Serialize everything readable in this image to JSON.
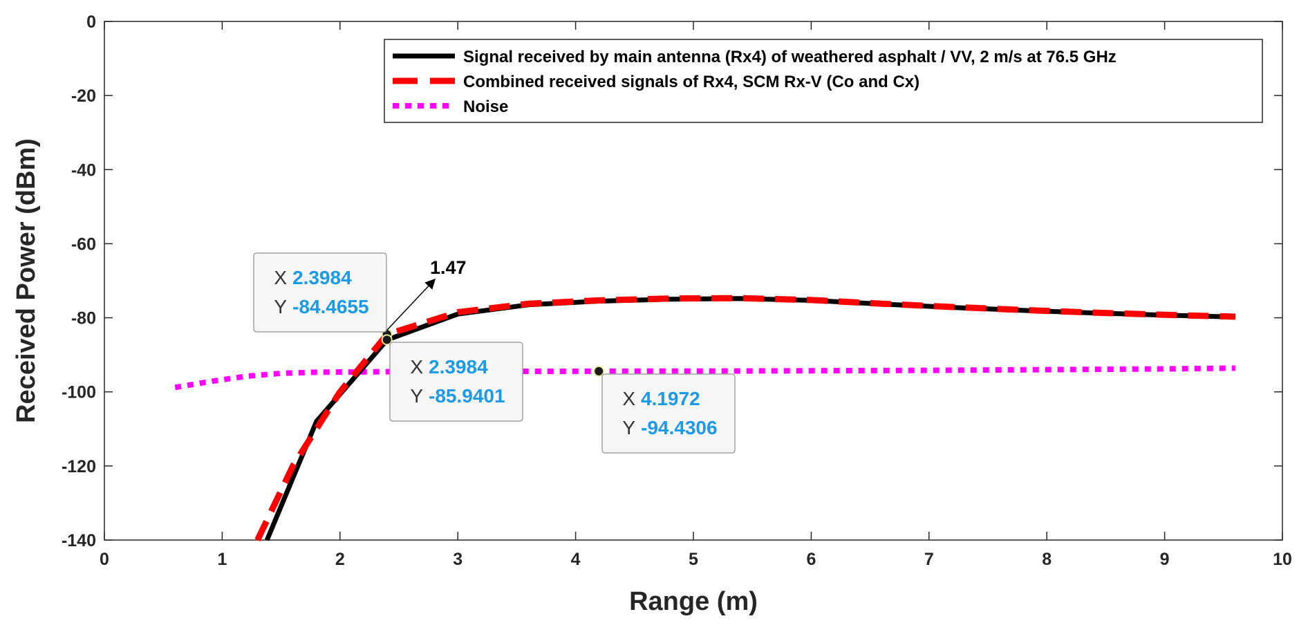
{
  "chart_data": {
    "type": "line",
    "title": "",
    "xlabel": "Range (m)",
    "ylabel": "Received Power (dBm)",
    "xlim": [
      0,
      10
    ],
    "ylim": [
      -140,
      0
    ],
    "xticks": [
      0,
      1,
      2,
      3,
      4,
      5,
      6,
      7,
      8,
      9,
      10
    ],
    "yticks": [
      0,
      -20,
      -40,
      -60,
      -80,
      -100,
      -120,
      -140
    ],
    "xtick_labels": [
      "0",
      "1",
      "2",
      "3",
      "4",
      "5",
      "6",
      "7",
      "8",
      "9",
      "10"
    ],
    "ytick_labels": [
      "0",
      "-20",
      "-40",
      "-60",
      "-80",
      "-100",
      "-120",
      "-140"
    ],
    "grid": false,
    "legend_position": "top-right",
    "series": [
      {
        "name": "Signal received by main antenna (Rx4) of weathered asphalt / VV, 2 m/s at 76.5 GHz",
        "color": "#000000",
        "style": "solid",
        "x": [
          1.38,
          1.8,
          2.4,
          3.0,
          3.6,
          4.2,
          4.8,
          5.4,
          6.0,
          6.6,
          7.2,
          7.8,
          8.4,
          9.0,
          9.6
        ],
        "y": [
          -140,
          -108,
          -85.9401,
          -79,
          -76.5,
          -75.5,
          -75,
          -74.8,
          -75.3,
          -76.3,
          -77.2,
          -78,
          -78.7,
          -79.3,
          -79.8
        ]
      },
      {
        "name": "Combined received signals of Rx4, SCM Rx-V (Co and Cx)",
        "color": "#ff0000",
        "style": "dashed",
        "x": [
          1.3,
          1.6,
          2.0,
          2.4,
          3.0,
          3.6,
          4.2,
          4.8,
          5.4,
          6.0,
          6.6,
          7.2,
          7.8,
          8.4,
          9.0,
          9.6
        ],
        "y": [
          -140,
          -120,
          -100,
          -84.4655,
          -78.5,
          -76.2,
          -75.3,
          -74.8,
          -74.7,
          -75.2,
          -76.2,
          -77.1,
          -77.9,
          -78.6,
          -79.2,
          -79.7
        ]
      },
      {
        "name": "Noise",
        "color": "#ff00ff",
        "style": "dotted",
        "x": [
          0.6,
          0.9,
          1.2,
          1.5,
          1.8,
          2.2,
          2.6,
          3.0,
          3.6,
          4.2,
          5.0,
          6.0,
          7.0,
          8.0,
          9.0,
          9.6
        ],
        "y": [
          -98.8,
          -97.2,
          -95.8,
          -95,
          -94.7,
          -94.6,
          -94.5,
          -94.5,
          -94.45,
          -94.4306,
          -94.4,
          -94.3,
          -94.2,
          -94.0,
          -93.8,
          -93.6
        ]
      }
    ],
    "datatips": [
      {
        "x_label": "X",
        "y_label": "Y",
        "x_value": "2.3984",
        "y_value": "-84.4655",
        "x": 2.3984,
        "y": -84.4655
      },
      {
        "x_label": "X",
        "y_label": "Y",
        "x_value": "2.3984",
        "y_value": "-85.9401",
        "x": 2.3984,
        "y": -85.9401
      },
      {
        "x_label": "X",
        "y_label": "Y",
        "x_value": "4.1972",
        "y_value": "-94.4306",
        "x": 4.1972,
        "y": -94.4306
      }
    ],
    "annotations": [
      {
        "text": "1.47"
      }
    ]
  }
}
